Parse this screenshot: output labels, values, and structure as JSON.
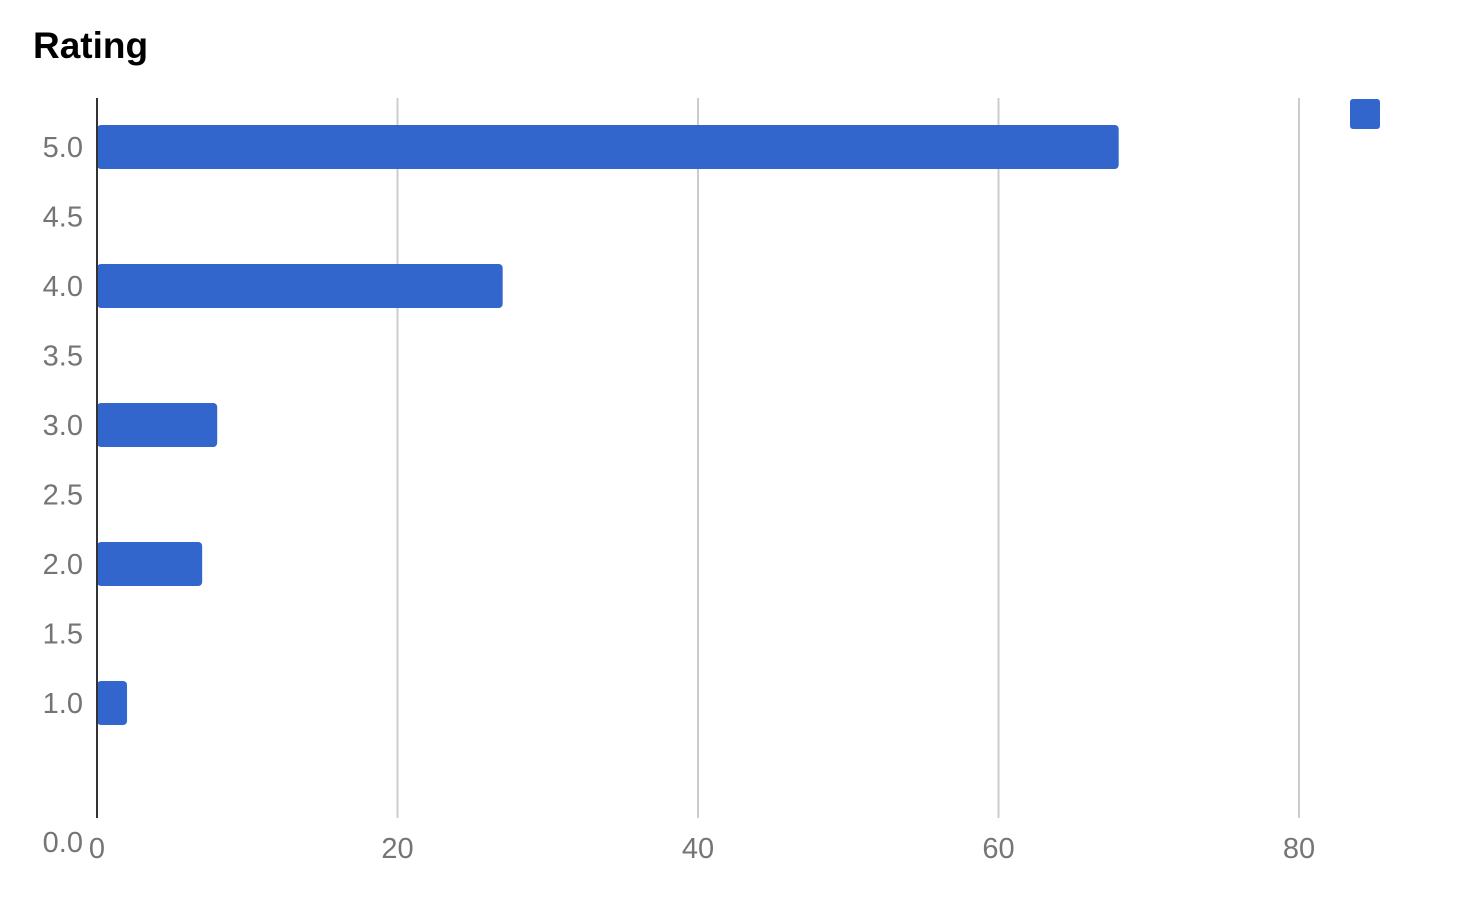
{
  "chart_data": {
    "type": "bar",
    "orientation": "horizontal",
    "title": "Rating",
    "xlabel": "",
    "ylabel": "",
    "y_values": [
      5.0,
      4.0,
      3.0,
      2.0,
      1.0
    ],
    "values": [
      68,
      27,
      8,
      7,
      2
    ],
    "xlim": [
      0,
      85
    ],
    "ylim": [
      -0.3,
      5.3
    ],
    "x_ticks": [
      "0",
      "20",
      "40",
      "60",
      "80"
    ],
    "y_ticks": [
      "5.0",
      "4.5",
      "4.0",
      "3.5",
      "3.0",
      "2.5",
      "2.0",
      "1.5",
      "1.0",
      "0.0"
    ],
    "grid": "vertical",
    "legend": "top-right",
    "colors": {
      "bar": "#3366cc",
      "grid": "#cccccc",
      "axis": "#333333",
      "tick_text": "#757575"
    }
  }
}
